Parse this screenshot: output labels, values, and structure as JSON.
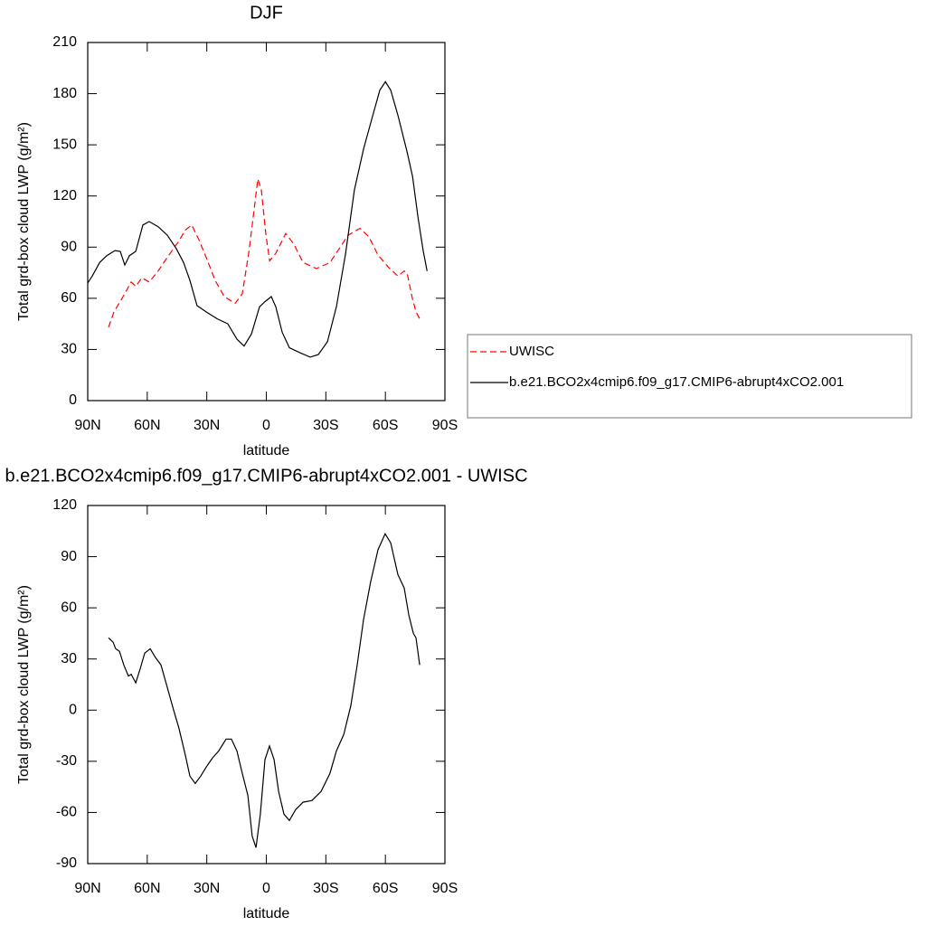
{
  "chart_data": [
    {
      "type": "line",
      "title": "DJF",
      "xlabel": "latitude",
      "ylabel": "Total grd-box cloud LWP (g/m²)",
      "xlim": [
        90,
        -90
      ],
      "xticks": [
        {
          "value": 90,
          "label": "90N"
        },
        {
          "value": 60,
          "label": "60N"
        },
        {
          "value": 30,
          "label": "30N"
        },
        0,
        {
          "value": -30,
          "label": "30S"
        },
        {
          "value": -60,
          "label": "60S"
        },
        {
          "value": -90,
          "label": "90S"
        }
      ],
      "ylim": [
        0,
        210
      ],
      "yticks": [
        0,
        30,
        60,
        90,
        120,
        150,
        180,
        210
      ],
      "legend": "right",
      "series": [
        {
          "name": "UWISC",
          "color": "#ff0000",
          "dash": true,
          "x": [
            79.5,
            76.8,
            72.7,
            68.1,
            65.8,
            62.7,
            59,
            54.5,
            49.9,
            44.4,
            40.8,
            37.6,
            34,
            30.3,
            25.8,
            21.2,
            15.7,
            12.1,
            8.9,
            6.6,
            4.3,
            2.5,
            0.2,
            -1.7,
            -4.8,
            -9.8,
            -13.9,
            -18.5,
            -25.3,
            -32.1,
            -36.7,
            -41.2,
            -47.2,
            -51.7,
            -56.3,
            -61.7,
            -66.3,
            -69.5,
            -70.9,
            -73.6,
            -75.4,
            -77.3
          ],
          "values": [
            43,
            52,
            60,
            69.5,
            67,
            72,
            69.5,
            76,
            84,
            93,
            100,
            103,
            94.4,
            84,
            70.5,
            61,
            57,
            62.6,
            86.4,
            107.6,
            130,
            123.5,
            97,
            82,
            86.4,
            98,
            91.7,
            81,
            77.4,
            81,
            89,
            97,
            101,
            96,
            85.4,
            78,
            73,
            76,
            75,
            60,
            52,
            48
          ]
        },
        {
          "name": "b.e21.BCO2x4cmip6.f09_g17.CMIP6-abrupt4xCO2.001",
          "color": "#000000",
          "dash": false,
          "x": [
            90,
            87.7,
            84,
            80.4,
            76.3,
            73.6,
            71.3,
            69,
            65.8,
            62.2,
            59,
            54.5,
            49.9,
            45.3,
            41.7,
            38.5,
            34.9,
            30.3,
            24.8,
            19.4,
            14.8,
            11.2,
            7.5,
            3.4,
            0.7,
            -2.5,
            -4.8,
            -8,
            -11.6,
            -17.1,
            -22.1,
            -26.2,
            -30.8,
            -35.3,
            -39.9,
            -44.4,
            -49,
            -53.6,
            -57.2,
            -60,
            -62.7,
            -66.4,
            -70.9,
            -73.7,
            -76.4,
            -79.1,
            -81
          ],
          "values": [
            69,
            73,
            81,
            85,
            88,
            87.5,
            79.5,
            85,
            87.5,
            103,
            105,
            102,
            97,
            89,
            81,
            70.5,
            55.7,
            52,
            48,
            45,
            36,
            32,
            39,
            55,
            58,
            61,
            55,
            40,
            31,
            28,
            25.5,
            27,
            34.5,
            55,
            86,
            123.5,
            147.5,
            167,
            182,
            187,
            182,
            167,
            146,
            131.5,
            107.6,
            87.5,
            76
          ]
        }
      ]
    },
    {
      "type": "line",
      "title": "b.e21.BCO2x4cmip6.f09_g17.CMIP6-abrupt4xCO2.001 - UWISC",
      "xlabel": "latitude",
      "ylabel": "Total grd-box cloud LWP (g/m²)",
      "xlim": [
        90,
        -90
      ],
      "xticks": [
        {
          "value": 90,
          "label": "90N"
        },
        {
          "value": 60,
          "label": "60N"
        },
        {
          "value": 30,
          "label": "30N"
        },
        0,
        {
          "value": -30,
          "label": "30S"
        },
        {
          "value": -60,
          "label": "60S"
        },
        {
          "value": -90,
          "label": "90S"
        }
      ],
      "ylim": [
        -90,
        120
      ],
      "yticks": [
        -90,
        -60,
        -30,
        0,
        30,
        60,
        90,
        120
      ],
      "series": [
        {
          "color": "#000000",
          "dash": false,
          "x": [
            79.5,
            77.2,
            75.9,
            74,
            71.8,
            69.5,
            68.1,
            65.8,
            63.6,
            61.3,
            58.5,
            55.8,
            53.1,
            49.9,
            46.7,
            44,
            40.8,
            38.5,
            35.8,
            33.1,
            30.3,
            27.1,
            24,
            20.3,
            17.6,
            14.8,
            12.1,
            9.3,
            7.1,
            5.2,
            3,
            0.7,
            -1.6,
            -3.9,
            -6.2,
            -8.9,
            -11.6,
            -14.8,
            -18.5,
            -23,
            -27.6,
            -32.1,
            -35.3,
            -39,
            -42.6,
            -45.8,
            -49,
            -52.6,
            -56.3,
            -59.9,
            -62.7,
            -66.3,
            -69.5,
            -71.8,
            -74.1,
            -75.4,
            -77.3
          ],
          "values": [
            42.4,
            39.8,
            36,
            34.5,
            26.5,
            20,
            21,
            16,
            24,
            33.4,
            36,
            30.7,
            26.5,
            13.3,
            0,
            -10.6,
            -26.5,
            -38.7,
            -43,
            -38.7,
            -33.4,
            -28,
            -24,
            -17,
            -17,
            -24,
            -37,
            -50,
            -74,
            -80.6,
            -61,
            -29,
            -21,
            -29,
            -47.7,
            -61,
            -64.7,
            -58.3,
            -54,
            -53,
            -47.7,
            -37,
            -24,
            -14.3,
            2.7,
            26.5,
            53,
            75.3,
            94,
            103.4,
            98,
            79.5,
            71.6,
            55.7,
            45,
            42.4,
            26.5
          ]
        }
      ]
    }
  ]
}
